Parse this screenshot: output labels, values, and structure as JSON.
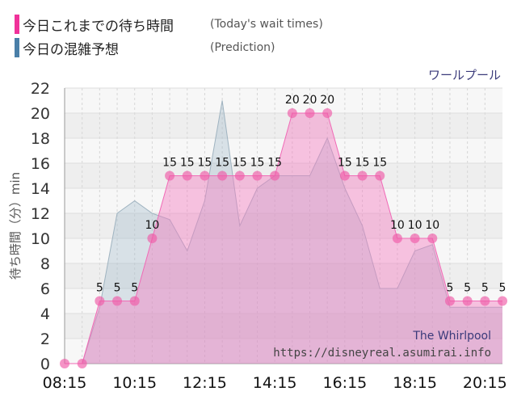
{
  "legend": {
    "wait_label": "今日これまでの待ち時間",
    "wait_note": "(Today's wait times)",
    "wait_color": "#f0329a",
    "pred_label": "今日の混雑予想",
    "pred_note": "(Prediction)",
    "pred_color": "#4a7fa8"
  },
  "attraction_jp": "ワールプール",
  "attraction_en": "The Whirlpool",
  "source_url": "https://disneyreal.asumirai.info",
  "chart_data": {
    "type": "area",
    "ylabel": "待ち時間（分）min",
    "ylim": [
      0,
      22
    ],
    "yticks": [
      0,
      2,
      4,
      6,
      8,
      10,
      12,
      14,
      16,
      18,
      20,
      22
    ],
    "xticks": [
      "08:15",
      "10:15",
      "12:15",
      "14:15",
      "16:15",
      "18:15",
      "20:15"
    ],
    "xlim": [
      "08:15",
      "20:45"
    ],
    "grid": true,
    "series": [
      {
        "name": "今日これまでの待ち時間",
        "color": "#f0329a",
        "points": [
          {
            "t": "08:15",
            "v": 0
          },
          {
            "t": "08:45",
            "v": 0
          },
          {
            "t": "09:15",
            "v": 5
          },
          {
            "t": "09:45",
            "v": 5
          },
          {
            "t": "10:15",
            "v": 5
          },
          {
            "t": "10:45",
            "v": 10
          },
          {
            "t": "11:15",
            "v": 15
          },
          {
            "t": "11:45",
            "v": 15
          },
          {
            "t": "12:15",
            "v": 15
          },
          {
            "t": "12:45",
            "v": 15
          },
          {
            "t": "13:15",
            "v": 15
          },
          {
            "t": "13:45",
            "v": 15
          },
          {
            "t": "14:15",
            "v": 15
          },
          {
            "t": "14:45",
            "v": 20
          },
          {
            "t": "15:15",
            "v": 20
          },
          {
            "t": "15:45",
            "v": 20
          },
          {
            "t": "16:15",
            "v": 15
          },
          {
            "t": "16:45",
            "v": 15
          },
          {
            "t": "17:15",
            "v": 15
          },
          {
            "t": "17:45",
            "v": 10
          },
          {
            "t": "18:15",
            "v": 10
          },
          {
            "t": "18:45",
            "v": 10
          },
          {
            "t": "19:15",
            "v": 5
          },
          {
            "t": "19:45",
            "v": 5
          },
          {
            "t": "20:15",
            "v": 5
          },
          {
            "t": "20:45",
            "v": 5
          }
        ]
      },
      {
        "name": "今日の混雑予想",
        "color": "#4a7fa8",
        "points": [
          {
            "t": "08:15",
            "v": 0
          },
          {
            "t": "08:45",
            "v": 0
          },
          {
            "t": "09:15",
            "v": 4.5
          },
          {
            "t": "09:45",
            "v": 12
          },
          {
            "t": "10:15",
            "v": 13
          },
          {
            "t": "10:45",
            "v": 12
          },
          {
            "t": "11:15",
            "v": 11.5
          },
          {
            "t": "11:45",
            "v": 9
          },
          {
            "t": "12:15",
            "v": 13
          },
          {
            "t": "12:45",
            "v": 21
          },
          {
            "t": "13:15",
            "v": 11
          },
          {
            "t": "13:45",
            "v": 14
          },
          {
            "t": "14:15",
            "v": 15
          },
          {
            "t": "14:45",
            "v": 15
          },
          {
            "t": "15:15",
            "v": 15
          },
          {
            "t": "15:45",
            "v": 18
          },
          {
            "t": "16:15",
            "v": 14
          },
          {
            "t": "16:45",
            "v": 11
          },
          {
            "t": "17:15",
            "v": 6
          },
          {
            "t": "17:45",
            "v": 6
          },
          {
            "t": "18:15",
            "v": 9
          },
          {
            "t": "18:45",
            "v": 9.5
          },
          {
            "t": "19:15",
            "v": 4.5
          },
          {
            "t": "19:45",
            "v": 4.5
          },
          {
            "t": "20:15",
            "v": 4.5
          },
          {
            "t": "20:45",
            "v": 4.5
          }
        ]
      }
    ]
  }
}
